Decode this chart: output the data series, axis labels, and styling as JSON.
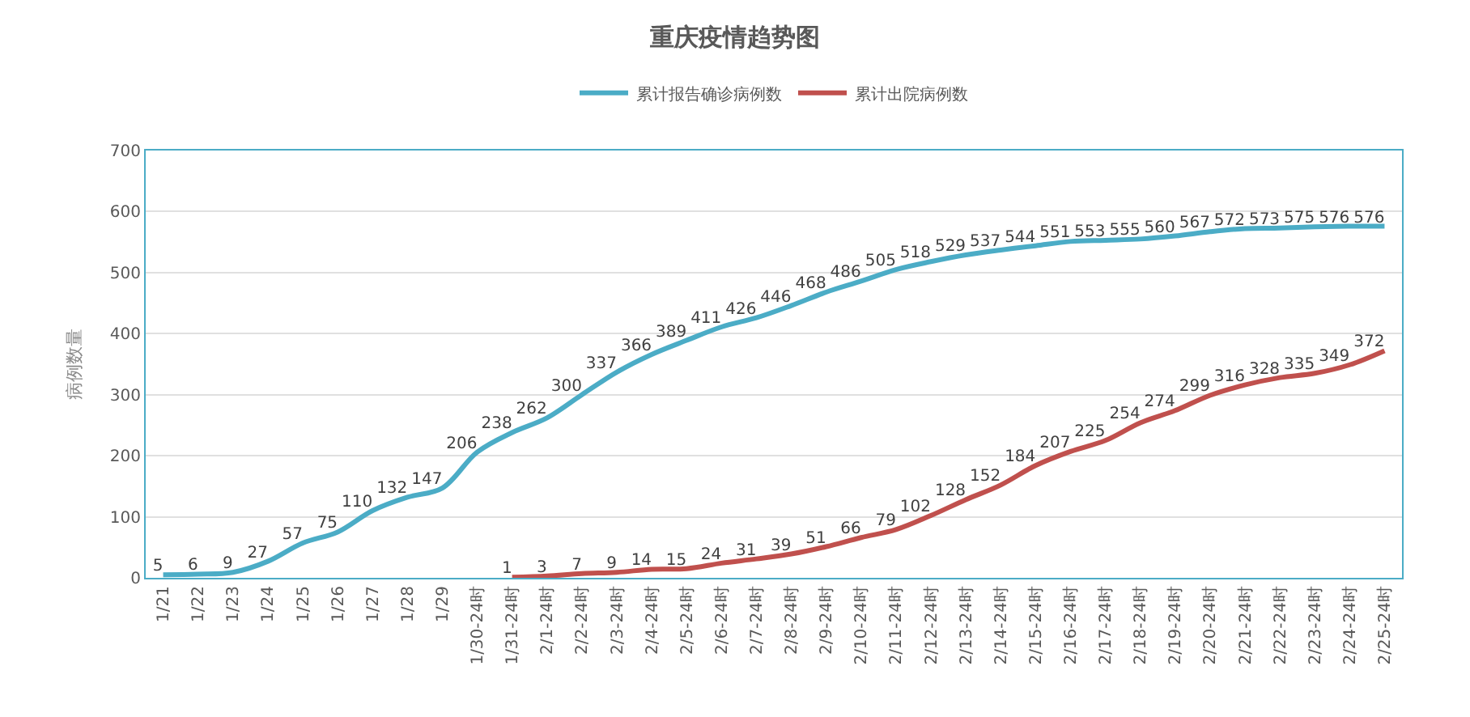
{
  "chart_data": {
    "type": "line",
    "title": "重庆疫情趋势图",
    "ylabel": "病例数量",
    "categories": [
      "1/21",
      "1/22",
      "1/23",
      "1/24",
      "1/25",
      "1/26",
      "1/27",
      "1/28",
      "1/29",
      "1/30-24时",
      "1/31-24时",
      "2/1-24时",
      "2/2-24时",
      "2/3-24时",
      "2/4-24时",
      "2/5-24时",
      "2/6-24时",
      "2/7-24时",
      "2/8-24时",
      "2/9-24时",
      "2/10-24时",
      "2/11-24时",
      "2/12-24时",
      "2/13-24时",
      "2/14-24时",
      "2/15-24时",
      "2/16-24时",
      "2/17-24时",
      "2/18-24时",
      "2/19-24时",
      "2/20-24时",
      "2/21-24时",
      "2/22-24时",
      "2/23-24时",
      "2/24-24时",
      "2/25-24时"
    ],
    "series": [
      {
        "name": "累计报告确诊病例数",
        "color": "#4bacc6",
        "values": [
          5,
          6,
          9,
          27,
          57,
          75,
          110,
          132,
          147,
          206,
          238,
          262,
          300,
          337,
          366,
          389,
          411,
          426,
          446,
          468,
          486,
          505,
          518,
          529,
          537,
          544,
          551,
          553,
          555,
          560,
          567,
          572,
          573,
          575,
          576,
          576
        ]
      },
      {
        "name": "累计出院病例数",
        "color": "#c0504d",
        "values": [
          null,
          null,
          null,
          null,
          null,
          null,
          null,
          null,
          null,
          null,
          1,
          3,
          7,
          9,
          14,
          15,
          24,
          31,
          39,
          51,
          66,
          79,
          102,
          128,
          152,
          184,
          207,
          225,
          254,
          274,
          299,
          316,
          328,
          335,
          349,
          372
        ]
      }
    ],
    "ylim": [
      0,
      700
    ],
    "yticks": [
      0,
      100,
      200,
      300,
      400,
      500,
      600,
      700
    ],
    "grid": "y",
    "legend": "top",
    "data_labels": true,
    "marker": "none",
    "line_style": "solid"
  }
}
